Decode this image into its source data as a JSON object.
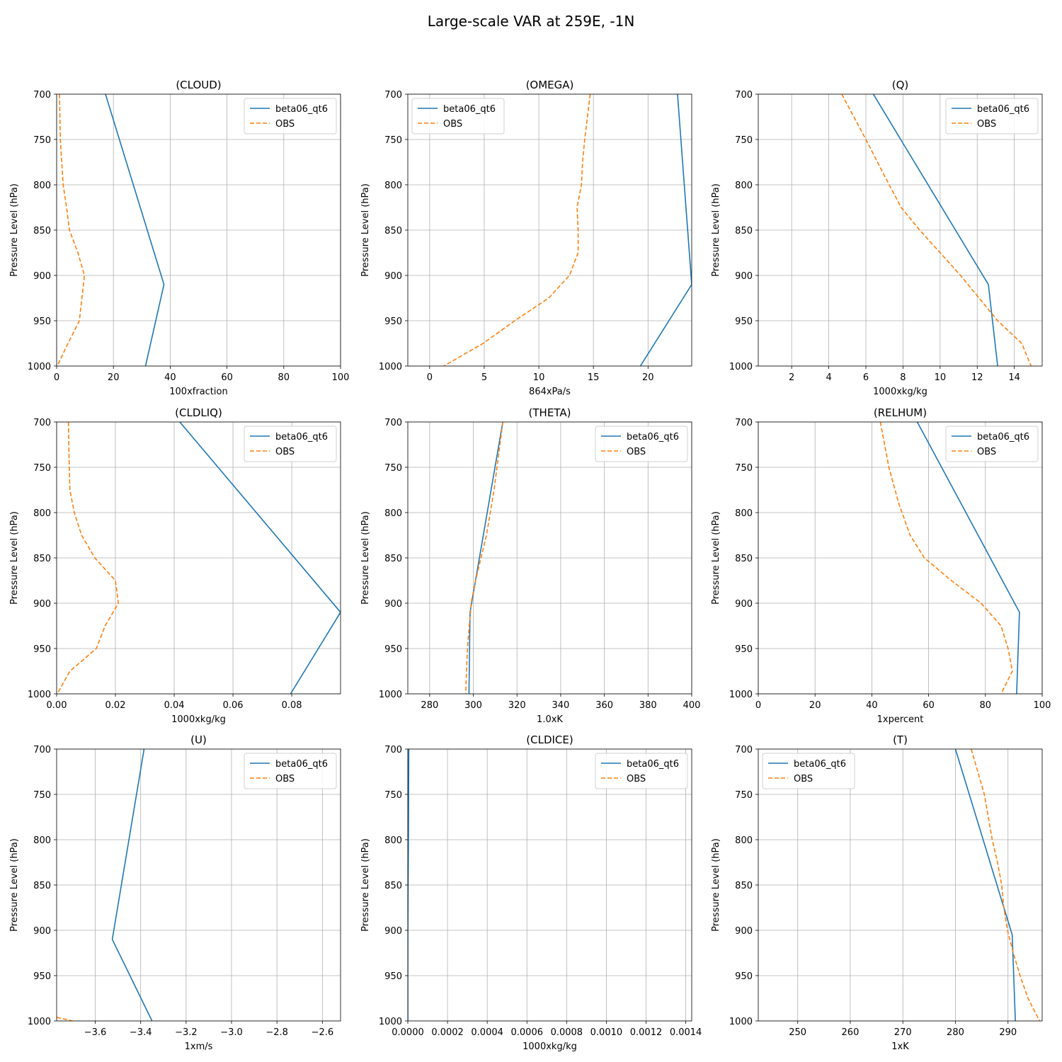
{
  "figure": {
    "title": "Large-scale VAR at 259E, -1N"
  },
  "chart_data": [
    {
      "id": "cloud",
      "type": "line",
      "title": "(CLOUD)",
      "xlabel": "100xfraction",
      "ylabel": "Pressure Level (hPa)",
      "xlim": [
        0,
        100
      ],
      "ylim": [
        1000,
        700
      ],
      "xticks": [
        0,
        20,
        40,
        60,
        80,
        100
      ],
      "xticklabels": [
        "0",
        "20",
        "40",
        "60",
        "80",
        "100"
      ],
      "yticks": [
        700,
        750,
        800,
        850,
        900,
        950,
        1000
      ],
      "yticklabels": [
        "700",
        "750",
        "800",
        "850",
        "900",
        "950",
        "1000"
      ],
      "legend": "upper right",
      "grid": true,
      "series": [
        {
          "name": "beta06_qt6",
          "color": "#1f77b4",
          "style": "solid",
          "points": [
            [
              17.2,
              700
            ],
            [
              37.8,
              910
            ],
            [
              31.3,
              1000
            ]
          ]
        },
        {
          "name": "OBS",
          "color": "#ff7f0e",
          "style": "dashed",
          "points": [
            [
              1.0,
              700
            ],
            [
              1.3,
              750
            ],
            [
              2.3,
              800
            ],
            [
              3.5,
              825
            ],
            [
              4.5,
              850
            ],
            [
              7.5,
              875
            ],
            [
              9.8,
              900
            ],
            [
              8.0,
              950
            ],
            [
              4.0,
              975
            ],
            [
              0.2,
              1000
            ]
          ]
        }
      ]
    },
    {
      "id": "omega",
      "type": "line",
      "title": "(OMEGA)",
      "xlabel": "864xPa/s",
      "ylabel": "Pressure Level (hPa)",
      "xlim": [
        -2,
        24
      ],
      "ylim": [
        1000,
        700
      ],
      "xticks": [
        0,
        5,
        10,
        15,
        20
      ],
      "xticklabels": [
        "0",
        "5",
        "10",
        "15",
        "20"
      ],
      "yticks": [
        700,
        750,
        800,
        850,
        900,
        950,
        1000
      ],
      "yticklabels": [
        "700",
        "750",
        "800",
        "850",
        "900",
        "950",
        "1000"
      ],
      "legend": "upper left",
      "grid": true,
      "series": [
        {
          "name": "beta06_qt6",
          "color": "#1f77b4",
          "style": "solid",
          "points": [
            [
              22.7,
              700
            ],
            [
              24.0,
              910
            ],
            [
              19.3,
              1000
            ]
          ]
        },
        {
          "name": "OBS",
          "color": "#ff7f0e",
          "style": "dashed",
          "points": [
            [
              14.7,
              700
            ],
            [
              14.2,
              750
            ],
            [
              14.0,
              775
            ],
            [
              13.9,
              800
            ],
            [
              13.5,
              825
            ],
            [
              13.6,
              850
            ],
            [
              13.6,
              875
            ],
            [
              12.8,
              900
            ],
            [
              10.9,
              925
            ],
            [
              7.8,
              950
            ],
            [
              4.9,
              975
            ],
            [
              1.3,
              1000
            ]
          ]
        }
      ]
    },
    {
      "id": "q",
      "type": "line",
      "title": "(Q)",
      "xlabel": "1000xkg/kg",
      "ylabel": "Pressure Level (hPa)",
      "xlim": [
        0.2,
        15.5
      ],
      "ylim": [
        1000,
        700
      ],
      "xticks": [
        2,
        4,
        6,
        8,
        10,
        12,
        14
      ],
      "xticklabels": [
        "2",
        "4",
        "6",
        "8",
        "10",
        "12",
        "14"
      ],
      "yticks": [
        700,
        750,
        800,
        850,
        900,
        950,
        1000
      ],
      "yticklabels": [
        "700",
        "750",
        "800",
        "850",
        "900",
        "950",
        "1000"
      ],
      "legend": "upper right",
      "grid": true,
      "series": [
        {
          "name": "beta06_qt6",
          "color": "#1f77b4",
          "style": "solid",
          "points": [
            [
              6.4,
              700
            ],
            [
              12.6,
              910
            ],
            [
              13.1,
              1000
            ]
          ]
        },
        {
          "name": "OBS",
          "color": "#ff7f0e",
          "style": "dashed",
          "points": [
            [
              4.7,
              700
            ],
            [
              6.0,
              750
            ],
            [
              7.0,
              790
            ],
            [
              7.9,
              825
            ],
            [
              8.9,
              850
            ],
            [
              10.0,
              875
            ],
            [
              11.1,
              900
            ],
            [
              12.1,
              925
            ],
            [
              13.1,
              950
            ],
            [
              14.4,
              975
            ],
            [
              14.9,
              1000
            ]
          ]
        }
      ]
    },
    {
      "id": "cldliq",
      "type": "line",
      "title": "(CLDLIQ)",
      "xlabel": "1000xkg/kg",
      "ylabel": "Pressure Level (hPa)",
      "xlim": [
        0,
        0.0966
      ],
      "ylim": [
        1000,
        700
      ],
      "xticks": [
        0,
        0.02,
        0.04,
        0.06,
        0.08
      ],
      "xticklabels": [
        "0.00",
        "0.02",
        "0.04",
        "0.06",
        "0.08"
      ],
      "yticks": [
        700,
        750,
        800,
        850,
        900,
        950,
        1000
      ],
      "yticklabels": [
        "700",
        "750",
        "800",
        "850",
        "900",
        "950",
        "1000"
      ],
      "legend": "upper right",
      "grid": true,
      "series": [
        {
          "name": "beta06_qt6",
          "color": "#1f77b4",
          "style": "solid",
          "points": [
            [
              0.0419,
              700
            ],
            [
              0.0966,
              910
            ],
            [
              0.0796,
              1000
            ]
          ]
        },
        {
          "name": "OBS",
          "color": "#ff7f0e",
          "style": "dashed",
          "points": [
            [
              0.004,
              700
            ],
            [
              0.0043,
              750
            ],
            [
              0.0045,
              775
            ],
            [
              0.006,
              800
            ],
            [
              0.0085,
              825
            ],
            [
              0.013,
              850
            ],
            [
              0.02,
              875
            ],
            [
              0.021,
              900
            ],
            [
              0.0165,
              925
            ],
            [
              0.0135,
              950
            ],
            [
              0.0045,
              975
            ],
            [
              0.0002,
              1000
            ]
          ]
        }
      ]
    },
    {
      "id": "theta",
      "type": "line",
      "title": "(THETA)",
      "xlabel": "1.0xK",
      "ylabel": "Pressure Level (hPa)",
      "xlim": [
        270,
        400
      ],
      "ylim": [
        1000,
        700
      ],
      "xticks": [
        280,
        300,
        320,
        340,
        360,
        380,
        400
      ],
      "xticklabels": [
        "280",
        "300",
        "320",
        "340",
        "360",
        "380",
        "400"
      ],
      "yticks": [
        700,
        750,
        800,
        850,
        900,
        950,
        1000
      ],
      "yticklabels": [
        "700",
        "750",
        "800",
        "850",
        "900",
        "950",
        "1000"
      ],
      "legend": "upper right",
      "grid": true,
      "series": [
        {
          "name": "beta06_qt6",
          "color": "#1f77b4",
          "style": "solid",
          "points": [
            [
              313.5,
              700
            ],
            [
              298.5,
              910
            ],
            [
              298.0,
              1000
            ]
          ]
        },
        {
          "name": "OBS",
          "color": "#ff7f0e",
          "style": "dashed",
          "points": [
            [
              313.5,
              700
            ],
            [
              309.5,
              775
            ],
            [
              306.0,
              825
            ],
            [
              301.0,
              875
            ],
            [
              299.0,
              900
            ],
            [
              297.3,
              950
            ],
            [
              296.5,
              1000
            ]
          ]
        }
      ]
    },
    {
      "id": "relhum",
      "type": "line",
      "title": "(RELHUM)",
      "xlabel": "1xpercent",
      "ylabel": "Pressure Level (hPa)",
      "xlim": [
        0,
        100
      ],
      "ylim": [
        1000,
        700
      ],
      "xticks": [
        0,
        20,
        40,
        60,
        80,
        100
      ],
      "xticklabels": [
        "0",
        "20",
        "40",
        "60",
        "80",
        "100"
      ],
      "yticks": [
        700,
        750,
        800,
        850,
        900,
        950,
        1000
      ],
      "yticklabels": [
        "700",
        "750",
        "800",
        "850",
        "900",
        "950",
        "1000"
      ],
      "legend": "upper right",
      "grid": true,
      "series": [
        {
          "name": "beta06_qt6",
          "color": "#1f77b4",
          "style": "solid",
          "points": [
            [
              56.0,
              700
            ],
            [
              92.0,
              910
            ],
            [
              91.0,
              1000
            ]
          ]
        },
        {
          "name": "OBS",
          "color": "#ff7f0e",
          "style": "dashed",
          "points": [
            [
              43.0,
              700
            ],
            [
              46.0,
              750
            ],
            [
              49.5,
              790
            ],
            [
              53.5,
              825
            ],
            [
              58.5,
              850
            ],
            [
              68.0,
              875
            ],
            [
              78.5,
              900
            ],
            [
              85.5,
              925
            ],
            [
              88.0,
              950
            ],
            [
              89.5,
              975
            ],
            [
              85.5,
              1000
            ]
          ]
        }
      ]
    },
    {
      "id": "u",
      "type": "line",
      "title": "(U)",
      "xlabel": "1xm/s",
      "ylabel": "Pressure Level (hPa)",
      "xlim": [
        -3.77,
        -2.52
      ],
      "ylim": [
        1000,
        700
      ],
      "xticks": [
        -3.6,
        -3.4,
        -3.2,
        -3.0,
        -2.8,
        -2.6
      ],
      "xticklabels": [
        "−3.6",
        "−3.4",
        "−3.2",
        "−3.0",
        "−2.8",
        "−2.6"
      ],
      "yticks": [
        700,
        750,
        800,
        850,
        900,
        950,
        1000
      ],
      "yticklabels": [
        "700",
        "750",
        "800",
        "850",
        "900",
        "950",
        "1000"
      ],
      "legend": "upper right",
      "grid": true,
      "series": [
        {
          "name": "beta06_qt6",
          "color": "#1f77b4",
          "style": "solid",
          "points": [
            [
              -3.385,
              700
            ],
            [
              -3.525,
              910
            ],
            [
              -3.35,
              1000
            ]
          ]
        },
        {
          "name": "OBS",
          "color": "#ff7f0e",
          "style": "dashed",
          "points": [
            [
              -3.77,
              996
            ],
            [
              -3.7,
              1000
            ]
          ]
        }
      ]
    },
    {
      "id": "cldice",
      "type": "line",
      "title": "(CLDICE)",
      "xlabel": "1000xkg/kg",
      "ylabel": "Pressure Level (hPa)",
      "xlim": [
        0,
        0.00143
      ],
      "ylim": [
        1000,
        700
      ],
      "xticks": [
        0,
        0.0002,
        0.0004,
        0.0006,
        0.0008,
        0.001,
        0.0012,
        0.0014
      ],
      "xticklabels": [
        "0.0000",
        "0.0002",
        "0.0004",
        "0.0006",
        "0.0008",
        "0.0010",
        "0.0012",
        "0.0014"
      ],
      "yticks": [
        700,
        750,
        800,
        850,
        900,
        950,
        1000
      ],
      "yticklabels": [
        "700",
        "750",
        "800",
        "850",
        "900",
        "950",
        "1000"
      ],
      "legend": "upper right",
      "grid": true,
      "series": [
        {
          "name": "beta06_qt6",
          "color": "#1f77b4",
          "style": "solid",
          "points": [
            [
              5e-06,
              700
            ],
            [
              3e-06,
              800
            ],
            [
              1.5e-06,
              850
            ],
            [
              3e-07,
              900
            ],
            [
              0.0,
              950
            ],
            [
              0.0,
              1000
            ]
          ]
        },
        {
          "name": "OBS",
          "color": "#ff7f0e",
          "style": "dashed",
          "points": []
        }
      ]
    },
    {
      "id": "t",
      "type": "line",
      "title": "(T)",
      "xlabel": "1xK",
      "ylabel": "Pressure Level (hPa)",
      "xlim": [
        242.5,
        296.5
      ],
      "ylim": [
        1000,
        700
      ],
      "xticks": [
        250,
        260,
        270,
        280,
        290
      ],
      "xticklabels": [
        "250",
        "260",
        "270",
        "280",
        "290"
      ],
      "yticks": [
        700,
        750,
        800,
        850,
        900,
        950,
        1000
      ],
      "yticklabels": [
        "700",
        "750",
        "800",
        "850",
        "900",
        "950",
        "1000"
      ],
      "legend": "upper left",
      "grid": true,
      "series": [
        {
          "name": "beta06_qt6",
          "color": "#1f77b4",
          "style": "solid",
          "points": [
            [
              280.0,
              700
            ],
            [
              290.8,
              905
            ],
            [
              291.4,
              1000
            ]
          ]
        },
        {
          "name": "OBS",
          "color": "#ff7f0e",
          "style": "dashed",
          "points": [
            [
              283.0,
              700
            ],
            [
              285.5,
              750
            ],
            [
              287.0,
              800
            ],
            [
              288.0,
              825
            ],
            [
              288.8,
              850
            ],
            [
              289.2,
              875
            ],
            [
              289.9,
              900
            ],
            [
              291.0,
              925
            ],
            [
              292.3,
              950
            ],
            [
              293.8,
              975
            ],
            [
              296.0,
              1000
            ]
          ]
        }
      ]
    }
  ]
}
